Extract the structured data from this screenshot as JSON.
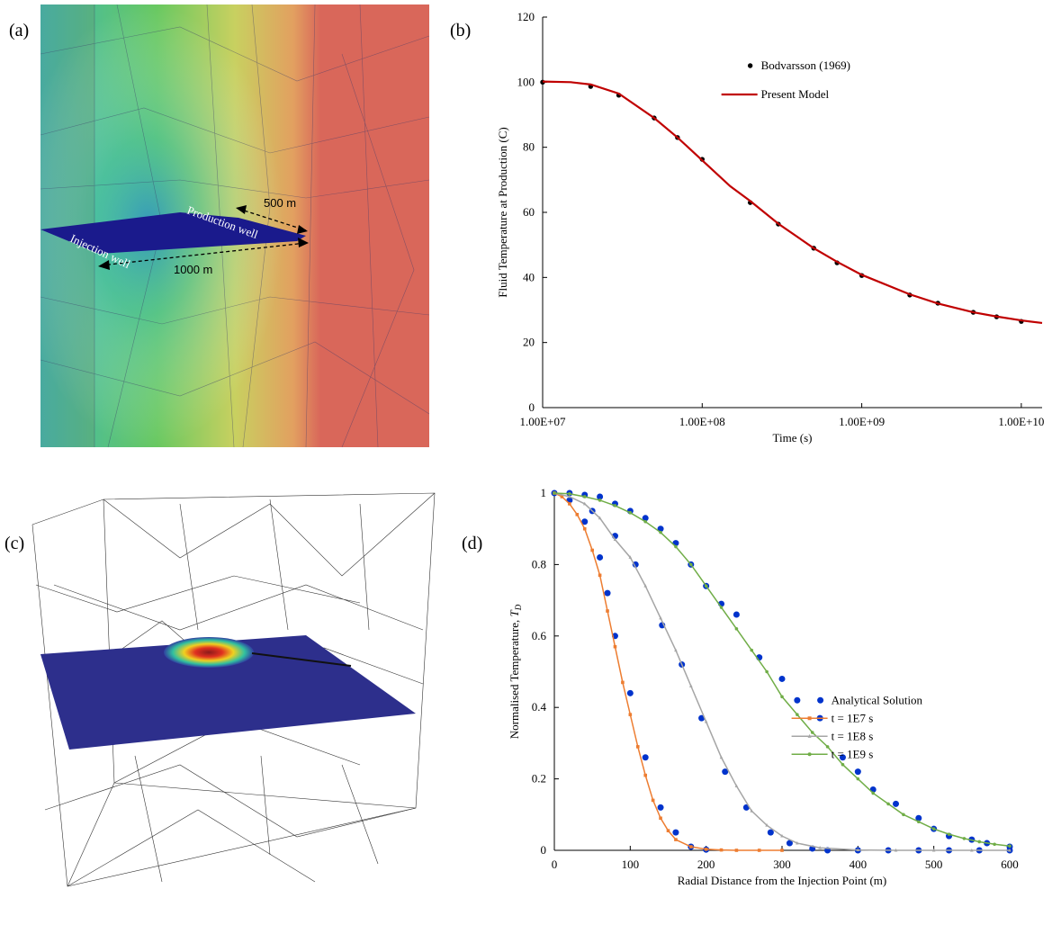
{
  "panel_labels": [
    "(a)",
    "(b)",
    "(c)",
    "(d)"
  ],
  "panel_a": {
    "labels": [
      "Injection well",
      "Production well",
      "500 m",
      "1000 m"
    ]
  },
  "chart_data": [
    {
      "type": "line",
      "xlabel": "Time (s)",
      "ylabel": "Fluid Temperature at Production (C)",
      "xscale": "log",
      "xlim": [
        10000000,
        13500000000
      ],
      "ylim": [
        0,
        120
      ],
      "xticks": [
        {
          "value": 10000000,
          "label": "1.00E+07"
        },
        {
          "value": 100000000,
          "label": "1.00E+08"
        },
        {
          "value": 1000000000,
          "label": "1.00E+09"
        },
        {
          "value": 10000000000,
          "label": "1.00E+10"
        }
      ],
      "yticks": [
        0,
        20,
        40,
        60,
        80,
        100,
        120
      ],
      "grid": false,
      "legend": "top",
      "series": [
        {
          "name": "Bodvarsson (1969)",
          "color": "#000000",
          "marker": "circle",
          "line": false,
          "x": [
            10000000,
            20000000,
            30000000,
            50000000,
            70000000,
            100000000,
            200000000,
            300000000,
            500000000,
            700000000,
            1000000000,
            2000000000,
            3000000000,
            5000000000,
            7000000000,
            10000000000
          ],
          "values": [
            100,
            98.7,
            96,
            89,
            83,
            76.3,
            63,
            56.4,
            49,
            44.5,
            40.6,
            34.6,
            32.1,
            29.3,
            27.9,
            26.5
          ]
        },
        {
          "name": "Present Model",
          "color": "#c00000",
          "marker": null,
          "line": true,
          "x": [
            10000000,
            15000000,
            20000000,
            30000000,
            50000000,
            70000000,
            100000000,
            150000000,
            200000000,
            300000000,
            500000000,
            700000000,
            1000000000,
            2000000000,
            3000000000,
            5000000000,
            7000000000,
            10000000000,
            13500000000
          ],
          "values": [
            100.2,
            100,
            99.3,
            96.5,
            89,
            83,
            76,
            68,
            63.5,
            56.5,
            49,
            44.8,
            40.8,
            34.8,
            32,
            29.3,
            28,
            26.8,
            26
          ]
        }
      ]
    },
    {
      "type": "line",
      "xlabel": "Radial Distance from the Injection Point (m)",
      "ylabel": "Normalised Temperature, ",
      "ylabel_symbol": "T",
      "ylabel_subscript": "D",
      "xscale": "linear",
      "xlim": [
        0,
        600
      ],
      "ylim": [
        0,
        1
      ],
      "xticks": [
        0,
        100,
        200,
        300,
        400,
        500,
        600
      ],
      "yticks": [
        0,
        0.2,
        0.4,
        0.6,
        0.8,
        1
      ],
      "grid": false,
      "legend": "right",
      "series": [
        {
          "name": "Analytical Solution",
          "color": "#0033cc",
          "marker": "circle",
          "line": false,
          "x": [
            20,
            40,
            60,
            70,
            80,
            100,
            120,
            140,
            160,
            180,
            200,
            50,
            80,
            107,
            142,
            168,
            194,
            225,
            253,
            285,
            310,
            340,
            0,
            20,
            40,
            60,
            80,
            100,
            120,
            140,
            160,
            180,
            200,
            220,
            240,
            270,
            300,
            320,
            350,
            380,
            400,
            420,
            450,
            480,
            500,
            520,
            550,
            570,
            600,
            360,
            400,
            440,
            480,
            520,
            560,
            600
          ],
          "values": [
            0.98,
            0.92,
            0.82,
            0.72,
            0.6,
            0.44,
            0.26,
            0.12,
            0.05,
            0.01,
            0.002,
            0.95,
            0.88,
            0.8,
            0.63,
            0.52,
            0.37,
            0.22,
            0.12,
            0.05,
            0.02,
            0.005,
            1,
            1,
            0.995,
            0.99,
            0.97,
            0.95,
            0.93,
            0.9,
            0.86,
            0.8,
            0.74,
            0.69,
            0.66,
            0.54,
            0.48,
            0.42,
            0.37,
            0.26,
            0.22,
            0.17,
            0.13,
            0.09,
            0.06,
            0.04,
            0.03,
            0.02,
            0.01,
            0,
            0,
            0,
            0,
            0,
            0,
            0
          ]
        },
        {
          "name": "t = 1E7 s",
          "color": "#ed7d31",
          "marker": "square",
          "line": true,
          "x": [
            0,
            10,
            20,
            30,
            40,
            50,
            60,
            70,
            80,
            90,
            100,
            110,
            120,
            130,
            140,
            150,
            160,
            180,
            200,
            220,
            240,
            270,
            300
          ],
          "values": [
            1,
            0.99,
            0.97,
            0.94,
            0.9,
            0.84,
            0.77,
            0.67,
            0.57,
            0.47,
            0.38,
            0.29,
            0.21,
            0.14,
            0.09,
            0.055,
            0.03,
            0.01,
            0.003,
            0.001,
            0,
            0,
            0
          ]
        },
        {
          "name": "t = 1E8 s",
          "color": "#a5a5a5",
          "marker": "triangle",
          "line": true,
          "x": [
            0,
            20,
            40,
            60,
            80,
            100,
            120,
            140,
            160,
            180,
            200,
            220,
            240,
            260,
            280,
            300,
            320,
            350,
            400,
            450,
            500,
            550,
            600
          ],
          "values": [
            1,
            0.99,
            0.97,
            0.93,
            0.87,
            0.82,
            0.74,
            0.65,
            0.56,
            0.46,
            0.36,
            0.26,
            0.18,
            0.11,
            0.07,
            0.04,
            0.02,
            0.007,
            0.001,
            0,
            0,
            0,
            0
          ]
        },
        {
          "name": "t = 1E9 s",
          "color": "#70ad47",
          "marker": "circle",
          "line": true,
          "x": [
            0,
            20,
            40,
            60,
            80,
            100,
            120,
            140,
            160,
            180,
            200,
            220,
            240,
            260,
            280,
            300,
            320,
            340,
            360,
            380,
            400,
            420,
            440,
            460,
            480,
            500,
            520,
            540,
            560,
            580,
            600
          ],
          "values": [
            1,
            0.998,
            0.99,
            0.98,
            0.965,
            0.945,
            0.92,
            0.89,
            0.85,
            0.8,
            0.74,
            0.68,
            0.62,
            0.56,
            0.5,
            0.43,
            0.38,
            0.33,
            0.29,
            0.24,
            0.2,
            0.16,
            0.13,
            0.1,
            0.08,
            0.06,
            0.045,
            0.033,
            0.024,
            0.017,
            0.012
          ]
        }
      ]
    }
  ]
}
